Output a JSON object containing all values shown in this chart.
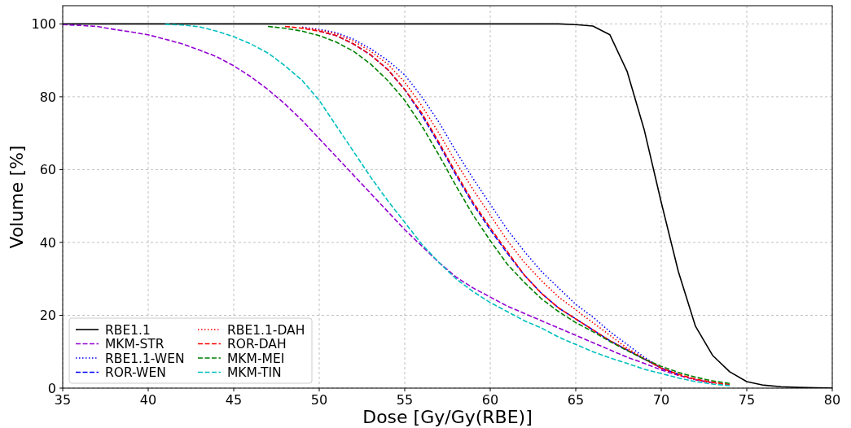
{
  "chart_data": {
    "type": "line",
    "xlabel": "Dose [Gy/Gy(RBE)]",
    "ylabel": "Volume [%]",
    "xlim": [
      35,
      80
    ],
    "xticks": [
      35,
      40,
      45,
      50,
      55,
      60,
      65,
      70,
      75,
      80
    ],
    "ylim": [
      0,
      105
    ],
    "yticks": [
      0,
      20,
      40,
      60,
      80,
      100
    ],
    "grid": true,
    "legend": "bottom left",
    "marker": "none",
    "series": [
      {
        "name": "RBE1.1",
        "color": "#000000",
        "line_style": "solid",
        "x": [
          35,
          36,
          37,
          38,
          39,
          40,
          41,
          42,
          43,
          44,
          45,
          46,
          47,
          48,
          49,
          50,
          51,
          52,
          53,
          54,
          55,
          56,
          57,
          58,
          59,
          60,
          61,
          62,
          63,
          64,
          65,
          66,
          67,
          68,
          69,
          70,
          71,
          72,
          73,
          74,
          75,
          76,
          77,
          78,
          79,
          80
        ],
        "values": [
          100,
          100,
          100,
          100,
          100,
          100,
          100,
          100,
          100,
          100,
          100,
          100,
          100,
          100,
          100,
          100,
          100,
          100,
          100,
          100,
          100,
          100,
          100,
          100,
          100,
          100,
          100,
          100,
          100,
          100,
          99.8,
          99.4,
          97,
          87,
          71,
          51,
          32,
          17,
          9,
          4.5,
          1.8,
          0.8,
          0.4,
          0.2,
          0.1,
          0
        ]
      },
      {
        "name": "MKM-STR",
        "color": "#9400d3",
        "line_style": "dashed",
        "x": [
          35,
          36,
          37,
          38,
          39,
          40,
          41,
          42,
          43,
          44,
          45,
          46,
          47,
          48,
          49,
          50,
          51,
          52,
          53,
          54,
          55,
          56,
          57,
          58,
          59,
          60,
          61,
          62,
          63,
          64,
          65,
          66,
          67,
          68,
          69,
          70,
          71,
          72,
          73
        ],
        "values": [
          99.8,
          99.6,
          99.3,
          98.5,
          97.8,
          97,
          95.8,
          94.5,
          92.8,
          91,
          88.5,
          85.5,
          82,
          78,
          73.5,
          68.5,
          63.5,
          58.5,
          53.5,
          48.5,
          43.5,
          39,
          34.5,
          30.5,
          27.5,
          25,
          22.5,
          20.5,
          18.5,
          16.5,
          14.5,
          12.5,
          10.5,
          8.5,
          6.8,
          5,
          3.5,
          2.3,
          1.5
        ]
      },
      {
        "name": "RBE1.1-WEN",
        "color": "#0000ff",
        "line_style": "dotted",
        "x": [
          49,
          50,
          51,
          52,
          53,
          54,
          55,
          56,
          57,
          58,
          59,
          60,
          61,
          62,
          63,
          64,
          65,
          66,
          67,
          68,
          69,
          70,
          71
        ],
        "values": [
          99.1,
          98.5,
          97.6,
          95.8,
          93.2,
          90,
          86,
          80,
          73,
          65,
          57.5,
          50.5,
          43.5,
          37.5,
          32,
          27.5,
          23,
          19.5,
          15.5,
          12,
          8.5,
          5.5,
          3.6
        ]
      },
      {
        "name": "ROR-WEN",
        "color": "#0000ff",
        "line_style": "dashed",
        "x": [
          50,
          51,
          52,
          53,
          54,
          55,
          56,
          57,
          58,
          59,
          60,
          61,
          62,
          63,
          64,
          65,
          66,
          67,
          68,
          69,
          70,
          71
        ],
        "values": [
          98,
          96.8,
          94.5,
          91.5,
          87.5,
          82,
          75,
          67,
          58.5,
          50.5,
          43.5,
          37,
          31,
          26,
          22,
          19,
          16,
          13,
          10.5,
          8,
          5.5,
          3.8
        ]
      },
      {
        "name": "RBE1.1-DAH",
        "color": "#ff0000",
        "line_style": "dotted",
        "x": [
          49,
          50,
          51,
          52,
          53,
          54,
          55,
          56,
          57,
          58,
          59,
          60,
          61,
          62,
          63,
          64,
          65,
          66,
          67,
          68,
          69,
          70,
          71,
          72,
          73,
          74
        ],
        "values": [
          99,
          98.3,
          97.3,
          95.3,
          92.5,
          89,
          84,
          77.5,
          70,
          62,
          54.5,
          47.5,
          40.5,
          34.5,
          29.5,
          25,
          21.5,
          18,
          14.5,
          11,
          8.2,
          5.5,
          3.6,
          2.3,
          1.4,
          0.9
        ]
      },
      {
        "name": "ROR-DAH",
        "color": "#ff0000",
        "line_style": "dashed",
        "x": [
          48,
          49,
          50,
          51,
          52,
          53,
          54,
          55,
          56,
          57,
          58,
          59,
          60,
          61,
          62,
          63,
          64,
          65,
          66,
          67,
          68,
          69,
          70,
          71,
          72,
          73,
          74
        ],
        "values": [
          99.3,
          98.8,
          98,
          96.8,
          94.5,
          91.5,
          87.5,
          82,
          75.5,
          67.5,
          59,
          51,
          44,
          37.5,
          31,
          26,
          22,
          19,
          16,
          13,
          10.5,
          8,
          5.5,
          3.8,
          2.5,
          1.6,
          1
        ]
      },
      {
        "name": "MKM-MEI",
        "color": "#008000",
        "line_style": "dashed",
        "x": [
          47,
          48,
          49,
          50,
          51,
          52,
          53,
          54,
          55,
          56,
          57,
          58,
          59,
          60,
          61,
          62,
          63,
          64,
          65,
          66,
          67,
          68,
          69,
          70,
          71,
          72,
          73,
          74
        ],
        "values": [
          99.3,
          98.8,
          98,
          96.8,
          95,
          92.5,
          89,
          84.5,
          79,
          72,
          64,
          55.5,
          47.5,
          40.5,
          34,
          29,
          24.5,
          21,
          18,
          15.5,
          12.8,
          10.3,
          8,
          6,
          4.3,
          3,
          2,
          1.3
        ]
      },
      {
        "name": "MKM-TIN",
        "color": "#00bfbf",
        "line_style": "dashed",
        "x": [
          41,
          42,
          43,
          44,
          45,
          46,
          47,
          48,
          49,
          50,
          51,
          52,
          53,
          54,
          55,
          56,
          57,
          58,
          59,
          60,
          61,
          62,
          63,
          64,
          65,
          66,
          67,
          68,
          69,
          70,
          71,
          72,
          73,
          74
        ],
        "values": [
          99.9,
          99.7,
          99.2,
          98,
          96.5,
          94.5,
          92,
          88.5,
          84.5,
          79,
          72,
          65,
          58,
          51.5,
          45.5,
          39.5,
          34.5,
          30,
          26.5,
          23.5,
          21,
          18.5,
          16.5,
          14,
          12,
          10,
          8.3,
          6.8,
          5.2,
          4,
          2.8,
          1.8,
          1.1,
          0.7
        ]
      }
    ]
  }
}
